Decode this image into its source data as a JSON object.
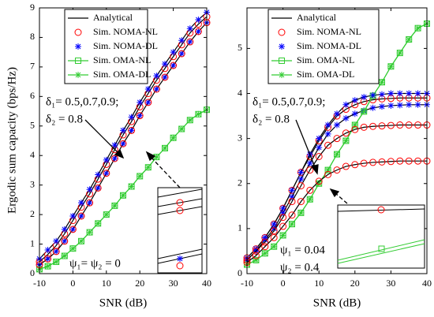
{
  "chart_data": [
    {
      "type": "line",
      "xlabel": "SNR (dB)",
      "ylabel": "Ergodic sum capacity (bps/Hz)",
      "x": [
        -10,
        -7.5,
        -5,
        -2.5,
        0,
        2.5,
        5,
        7.5,
        10,
        12.5,
        15,
        17.5,
        20,
        22.5,
        25,
        27.5,
        30,
        32.5,
        35,
        37.5,
        40
      ],
      "xlim": [
        -10,
        40
      ],
      "xticks": [
        -10,
        0,
        10,
        20,
        30,
        40
      ],
      "ylim": [
        0,
        9
      ],
      "yticks": [
        0,
        1,
        2,
        3,
        4,
        5,
        6,
        7,
        8,
        9
      ],
      "series": [
        {
          "name": "Analytical",
          "color": "#000000",
          "style": "line",
          "values": [
            0.5,
            0.8,
            1.1,
            1.5,
            1.95,
            2.4,
            2.85,
            3.35,
            3.85,
            4.35,
            4.85,
            5.3,
            5.8,
            6.25,
            6.7,
            7.1,
            7.5,
            7.9,
            8.3,
            8.6,
            8.85
          ]
        },
        {
          "name": "Sim. NOMA-NL",
          "color": "#ff0000",
          "style": "circle",
          "fit": true,
          "values": [
            0.4,
            0.65,
            0.95,
            1.35,
            1.8,
            2.25,
            2.7,
            3.2,
            3.7,
            4.2,
            4.7,
            5.15,
            5.65,
            6.1,
            6.55,
            6.95,
            7.35,
            7.75,
            8.15,
            8.45,
            8.7
          ]
        },
        {
          "name": "Sim. NOMA-DL",
          "color": "#0000ff",
          "style": "star",
          "fit": true,
          "values": [
            0.3,
            0.5,
            0.75,
            1.1,
            1.5,
            1.95,
            2.4,
            2.9,
            3.4,
            3.9,
            4.4,
            4.85,
            5.35,
            5.8,
            6.25,
            6.65,
            7.05,
            7.45,
            7.85,
            8.2,
            8.5
          ]
        },
        {
          "name": "Sim. OMA-NL",
          "color": "#33cc33",
          "style": "square-line",
          "values": [
            0.15,
            0.25,
            0.4,
            0.6,
            0.85,
            1.1,
            1.4,
            1.7,
            2.0,
            2.3,
            2.65,
            2.95,
            3.3,
            3.6,
            3.95,
            4.25,
            4.6,
            4.9,
            5.2,
            5.4,
            5.55
          ]
        },
        {
          "name": "Sim. OMA-DL",
          "color": "#33cc33",
          "style": "star-line",
          "values": [
            0.15,
            0.25,
            0.4,
            0.6,
            0.85,
            1.1,
            1.4,
            1.7,
            2.0,
            2.3,
            2.65,
            2.95,
            3.3,
            3.6,
            3.95,
            4.25,
            4.6,
            4.9,
            5.2,
            5.4,
            5.55
          ]
        },
        {
          "color": "#0000ff",
          "style": "star",
          "values": [
            0.5,
            0.8,
            1.1,
            1.5,
            1.95,
            2.4,
            2.85,
            3.35,
            3.85,
            4.35,
            4.85,
            5.3,
            5.8,
            6.25,
            6.7,
            7.1,
            7.5,
            7.9,
            8.3,
            8.6,
            8.85
          ]
        },
        {
          "color": "#ff0000",
          "style": "circle",
          "values": [
            0.3,
            0.5,
            0.75,
            1.1,
            1.5,
            1.95,
            2.4,
            2.9,
            3.4,
            3.9,
            4.4,
            4.85,
            5.35,
            5.8,
            6.25,
            6.65,
            7.05,
            7.45,
            7.85,
            8.2,
            8.5
          ]
        }
      ],
      "annotations": [
        "δ₁= 0.5,0.7,0.9;",
        "δ₂ = 0.8",
        "ψ₁= ψ₂ = 0"
      ]
    },
    {
      "type": "line",
      "xlabel": "SNR (dB)",
      "x": [
        -10,
        -7.5,
        -5,
        -2.5,
        0,
        2.5,
        5,
        7.5,
        10,
        12.5,
        15,
        17.5,
        20,
        22.5,
        25,
        27.5,
        30,
        32.5,
        35,
        37.5,
        40
      ],
      "xlim": [
        -10,
        40
      ],
      "xticks": [
        -10,
        0,
        10,
        20,
        30,
        40
      ],
      "ylim": [
        0,
        5.9
      ],
      "yticks": [
        0,
        1,
        2,
        3,
        4,
        5
      ],
      "series": [
        {
          "name": "Analytical",
          "color": "#000000",
          "style": "line",
          "values": [
            0.35,
            0.55,
            0.8,
            1.1,
            1.45,
            1.85,
            2.25,
            2.65,
            3.0,
            3.3,
            3.55,
            3.75,
            3.85,
            3.92,
            3.96,
            3.98,
            4.0,
            4.0,
            4.0,
            4.0,
            4.0
          ]
        },
        {
          "name": "Sim. NOMA-NL",
          "color": "#ff0000",
          "style": "circle",
          "fit": true,
          "values": [
            0.35,
            0.55,
            0.8,
            1.1,
            1.45,
            1.85,
            2.25,
            2.6,
            2.95,
            3.25,
            3.5,
            3.65,
            3.75,
            3.82,
            3.86,
            3.88,
            3.89,
            3.9,
            3.9,
            3.9,
            3.9
          ]
        },
        {
          "name": "Sim. NOMA-DL",
          "color": "#0000ff",
          "style": "star",
          "fit": true,
          "values": [
            0.3,
            0.5,
            0.75,
            1.0,
            1.35,
            1.7,
            2.1,
            2.45,
            2.8,
            3.1,
            3.3,
            3.45,
            3.55,
            3.62,
            3.68,
            3.71,
            3.73,
            3.74,
            3.75,
            3.75,
            3.75
          ]
        },
        {
          "name": "Sim. OMA-NL",
          "color": "#33cc33",
          "style": "square-line",
          "values": [
            0.2,
            0.3,
            0.45,
            0.6,
            0.85,
            1.1,
            1.35,
            1.65,
            2.0,
            2.3,
            2.65,
            2.95,
            3.3,
            3.6,
            3.95,
            4.25,
            4.6,
            4.9,
            5.2,
            5.45,
            5.55
          ]
        },
        {
          "name": "Sim. OMA-DL",
          "color": "#33cc33",
          "style": "star-line",
          "values": [
            0.2,
            0.3,
            0.45,
            0.6,
            0.85,
            1.1,
            1.35,
            1.65,
            2.0,
            2.3,
            2.65,
            2.95,
            3.3,
            3.6,
            3.95,
            4.25,
            4.6,
            4.9,
            5.2,
            5.45,
            5.55
          ]
        },
        {
          "color": "#0000ff",
          "style": "star",
          "values": [
            0.35,
            0.55,
            0.8,
            1.1,
            1.45,
            1.85,
            2.25,
            2.65,
            3.0,
            3.3,
            3.55,
            3.75,
            3.85,
            3.92,
            3.96,
            3.98,
            4.0,
            4.0,
            4.0,
            4.0,
            4.0
          ]
        },
        {
          "color": "#ff0000",
          "style": "circle",
          "fit": true,
          "values": [
            0.3,
            0.5,
            0.7,
            0.95,
            1.25,
            1.6,
            1.95,
            2.3,
            2.6,
            2.85,
            3.0,
            3.12,
            3.2,
            3.25,
            3.27,
            3.28,
            3.29,
            3.3,
            3.3,
            3.3,
            3.3
          ]
        },
        {
          "color": "#ff0000",
          "style": "circle",
          "fit": true,
          "values": [
            0.25,
            0.4,
            0.6,
            0.8,
            1.05,
            1.3,
            1.6,
            1.85,
            2.05,
            2.2,
            2.3,
            2.38,
            2.42,
            2.45,
            2.47,
            2.48,
            2.49,
            2.5,
            2.5,
            2.5,
            2.5
          ]
        }
      ],
      "annotations": [
        "δ₁= 0.5,0.7,0.9;",
        "δ₂ = 0.8",
        "ψ₁ = 0.04",
        "ψ₂ = 0.4"
      ]
    }
  ]
}
